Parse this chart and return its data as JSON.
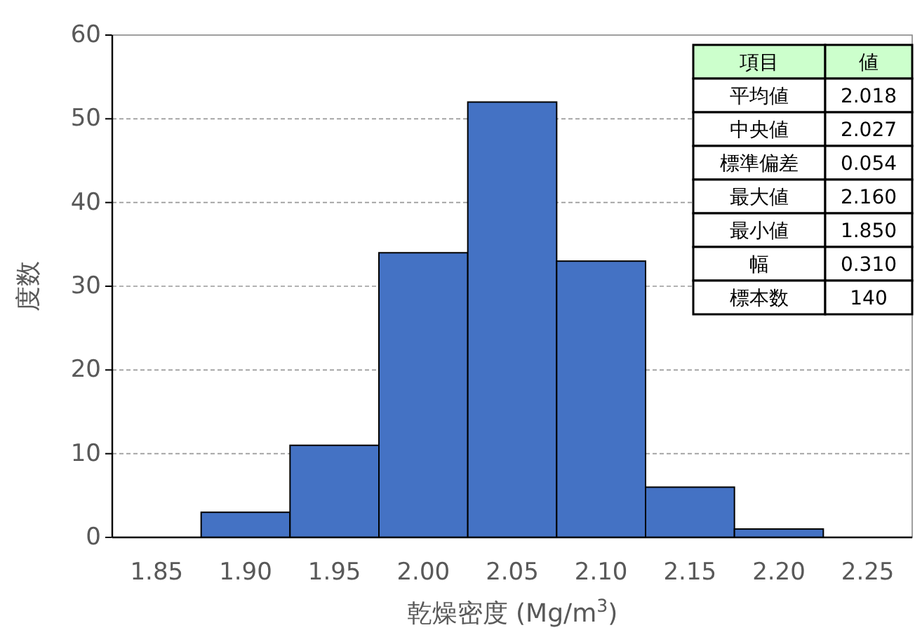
{
  "chart_data": {
    "type": "bar",
    "ylabel": "度数",
    "xlabel": "乾燥密度 (Mg/m$^{3}$)",
    "categories": [
      "1.85",
      "1.90",
      "1.95",
      "2.00",
      "2.05",
      "2.10",
      "2.15",
      "2.20",
      "2.25"
    ],
    "values": [
      0,
      3,
      11,
      34,
      52,
      33,
      6,
      1,
      0
    ],
    "color": "#4472c4",
    "ylim": [
      0,
      60
    ],
    "yticks": [
      0,
      10,
      20,
      30,
      40,
      50,
      60
    ],
    "grid": "y",
    "annotations": [
      "項目",
      "値",
      "平均値",
      "2.018",
      "中央値",
      "2.027",
      "標準偏差",
      "0.054",
      "最大値",
      "2.160",
      "最小値",
      "1.850",
      "幅",
      "0.310",
      "標本数",
      "140"
    ]
  }
}
